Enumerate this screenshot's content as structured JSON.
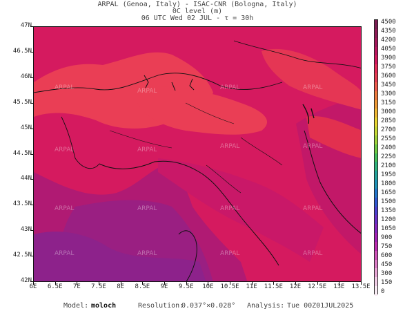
{
  "header": {
    "line1": "ARPAL (Genoa, Italy)  -  ISAC-CNR (Bologna, Italy)",
    "line2": "0C level (m)",
    "line3": "06 UTC Wed 02 JUL  -  τ = 30h"
  },
  "map": {
    "lat_labels": [
      "47N",
      "46.5N",
      "46N",
      "45.5N",
      "45N",
      "44.5N",
      "44N",
      "43.5N",
      "43N",
      "42.5N",
      "42N"
    ],
    "lon_labels": [
      "6E",
      "6.5E",
      "7E",
      "7.5E",
      "8E",
      "8.5E",
      "9E",
      "9.5E",
      "10E",
      "10.5E",
      "11E",
      "11.5E",
      "12E",
      "12.5E",
      "13E",
      "13.5E"
    ],
    "watermark": "ARPAL",
    "colors": {
      "land_high": "#ea3e55",
      "base": "#d51a5f",
      "mid": "#c31866",
      "sea_low": "#a81c79",
      "sea_lower": "#9a1f82",
      "sea_lowest": "#8d228b"
    }
  },
  "colorbar": {
    "labels": [
      "4500",
      "4350",
      "4200",
      "4050",
      "3900",
      "3750",
      "3600",
      "3450",
      "3300",
      "3150",
      "3000",
      "2850",
      "2700",
      "2550",
      "2400",
      "2250",
      "2100",
      "1950",
      "1800",
      "1650",
      "1500",
      "1350",
      "1200",
      "1050",
      "900",
      "750",
      "600",
      "450",
      "300",
      "150",
      "0"
    ],
    "colors": [
      "#7a1d52",
      "#8e1a57",
      "#a3175b",
      "#bb1560",
      "#d3165f",
      "#e62b58",
      "#e63d52",
      "#ef5a4c",
      "#ef7a3d",
      "#ef9a35",
      "#efb733",
      "#e8d530",
      "#c7d934",
      "#9fd33a",
      "#6ecb43",
      "#44c05a",
      "#2fb37b",
      "#23a49b",
      "#1f93b8",
      "#2476cb",
      "#3058d1",
      "#4c3fcf",
      "#6a30c8",
      "#8726bf",
      "#a321b5",
      "#bc2bb0",
      "#cf52b9",
      "#dc7cc6",
      "#e8a5d5",
      "#f1cde6",
      "#f9ecf4"
    ]
  },
  "footer": {
    "model_label": "Model:",
    "model_value": "moloch",
    "resolution_label": "Resolution:",
    "resolution_value": "0.037°×0.028°",
    "analysis_label": "Analysis:",
    "analysis_value": "Tue 00Z01JUL2025"
  }
}
